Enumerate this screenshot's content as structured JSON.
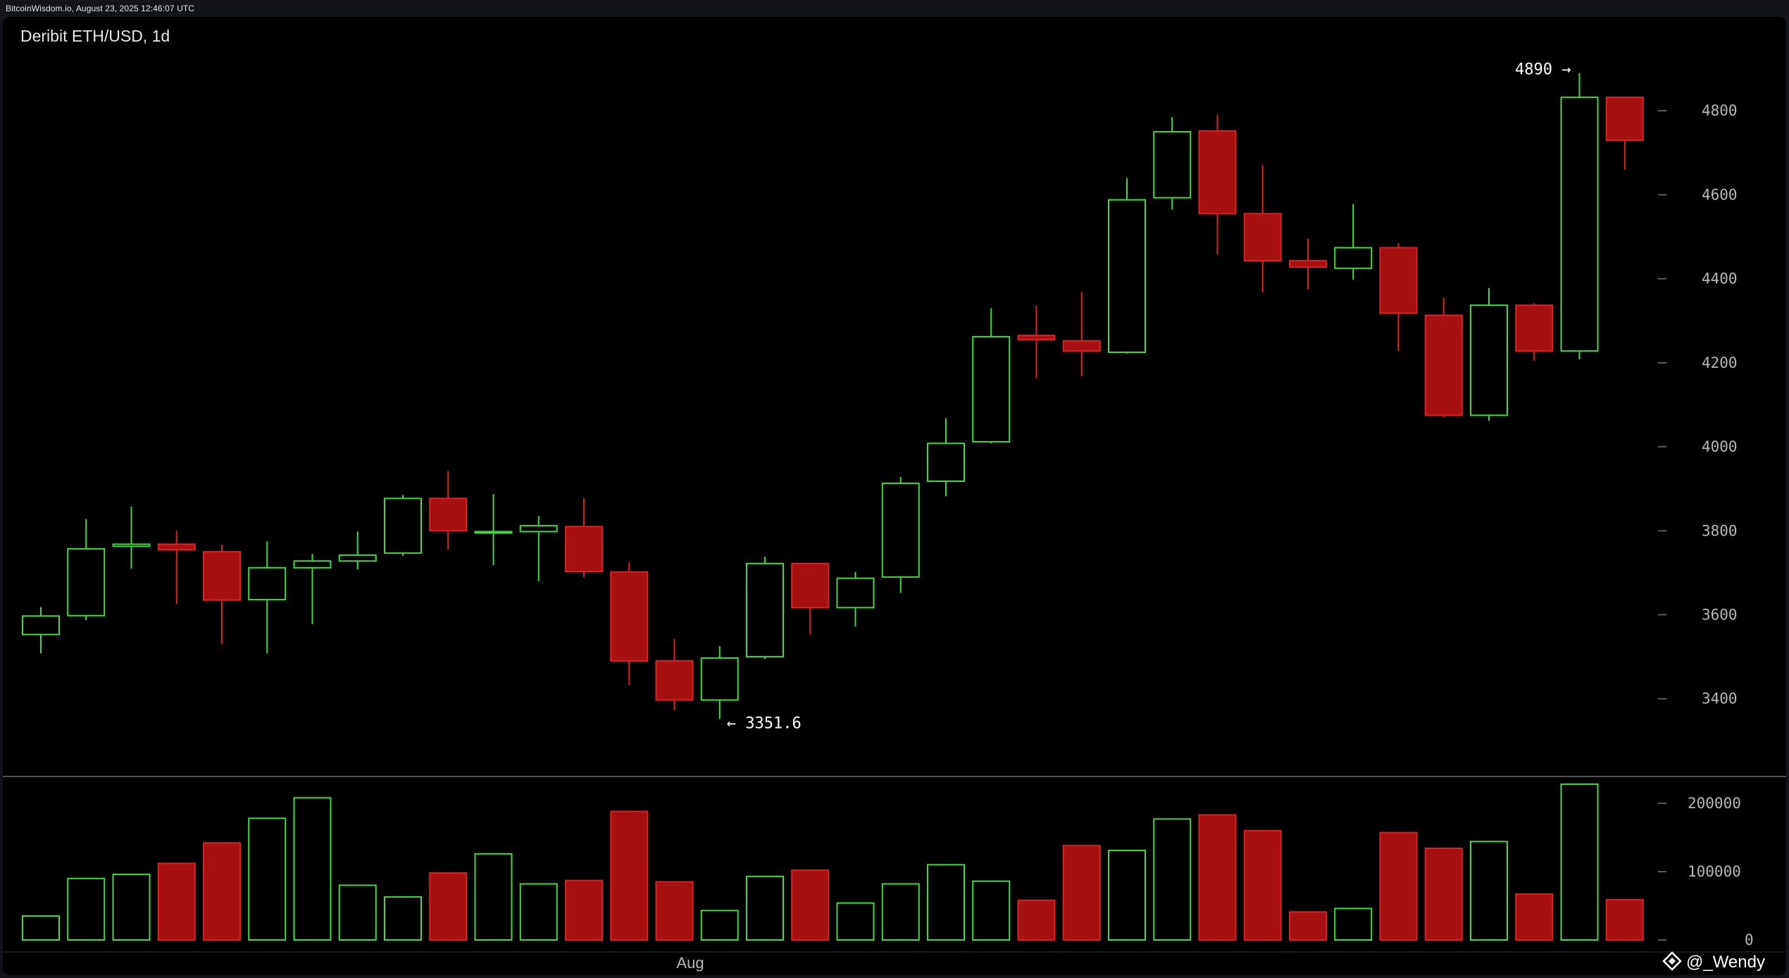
{
  "header": {
    "source_text": "BitcoinWisdom.io, August 23, 2025 12:46:07 UTC"
  },
  "watermark": "@_Wendy",
  "colors": {
    "background": "#000000",
    "up": "#3ddc3d",
    "down": "#a51111",
    "down_stroke": "#e02020",
    "axis_text": "#b8b8b8",
    "separator": "#555555"
  },
  "chart_data": {
    "type": "candlestick",
    "title": "Deribit ETH/USD, 1d",
    "price_axis": {
      "ticks": [
        3400,
        3600,
        3800,
        4000,
        4200,
        4400,
        4600,
        4800
      ],
      "tick_labels": [
        "3400",
        "3600",
        "3800",
        "4000",
        "4200",
        "4400",
        "4600",
        "4800"
      ],
      "range": [
        3220,
        4990
      ]
    },
    "volume_axis": {
      "ticks": [
        0,
        100000,
        200000
      ],
      "tick_labels": [
        "0",
        "100000",
        "200000"
      ],
      "range": [
        0,
        232000
      ]
    },
    "x_labels": [
      {
        "text": "Aug",
        "index": 14.35
      }
    ],
    "annotations": [
      {
        "text": "4890 →",
        "index": 34,
        "value": 4890,
        "side": "left"
      },
      {
        "text": "← 3351.6",
        "index": 15,
        "value": 3351.6,
        "side": "right"
      }
    ],
    "candles": [
      {
        "o": 3553,
        "h": 3618,
        "l": 3508,
        "c": 3597,
        "v": 35000
      },
      {
        "o": 3598,
        "h": 3828,
        "l": 3587,
        "c": 3757,
        "v": 90000
      },
      {
        "o": 3763,
        "h": 3858,
        "l": 3710,
        "c": 3768,
        "v": 96000
      },
      {
        "o": 3768,
        "h": 3800,
        "l": 3625,
        "c": 3755,
        "v": 112000
      },
      {
        "o": 3750,
        "h": 3767,
        "l": 3530,
        "c": 3635,
        "v": 142000
      },
      {
        "o": 3636,
        "h": 3775,
        "l": 3508,
        "c": 3712,
        "v": 178000
      },
      {
        "o": 3712,
        "h": 3745,
        "l": 3578,
        "c": 3728,
        "v": 208000
      },
      {
        "o": 3728,
        "h": 3798,
        "l": 3708,
        "c": 3742,
        "v": 80000
      },
      {
        "o": 3747,
        "h": 3885,
        "l": 3740,
        "c": 3877,
        "v": 63000
      },
      {
        "o": 3877,
        "h": 3942,
        "l": 3755,
        "c": 3800,
        "v": 98000
      },
      {
        "o": 3798,
        "h": 3887,
        "l": 3718,
        "c": 3798,
        "v": 126000
      },
      {
        "o": 3798,
        "h": 3835,
        "l": 3680,
        "c": 3812,
        "v": 82000
      },
      {
        "o": 3810,
        "h": 3878,
        "l": 3690,
        "c": 3703,
        "v": 87000
      },
      {
        "o": 3702,
        "h": 3725,
        "l": 3433,
        "c": 3490,
        "v": 188000
      },
      {
        "o": 3490,
        "h": 3542,
        "l": 3372,
        "c": 3397,
        "v": 85000
      },
      {
        "o": 3397,
        "h": 3525,
        "l": 3351.6,
        "c": 3497,
        "v": 43000
      },
      {
        "o": 3500,
        "h": 3738,
        "l": 3495,
        "c": 3722,
        "v": 93000
      },
      {
        "o": 3722,
        "h": 3722,
        "l": 3552,
        "c": 3617,
        "v": 102000
      },
      {
        "o": 3617,
        "h": 3702,
        "l": 3572,
        "c": 3687,
        "v": 54000
      },
      {
        "o": 3690,
        "h": 3928,
        "l": 3652,
        "c": 3913,
        "v": 82000
      },
      {
        "o": 3918,
        "h": 4068,
        "l": 3882,
        "c": 4008,
        "v": 110000
      },
      {
        "o": 4012,
        "h": 4330,
        "l": 4008,
        "c": 4262,
        "v": 86000
      },
      {
        "o": 4265,
        "h": 4336,
        "l": 4163,
        "c": 4255,
        "v": 58000
      },
      {
        "o": 4252,
        "h": 4368,
        "l": 4168,
        "c": 4228,
        "v": 138000
      },
      {
        "o": 4225,
        "h": 4640,
        "l": 4222,
        "c": 4588,
        "v": 131000
      },
      {
        "o": 4593,
        "h": 4785,
        "l": 4565,
        "c": 4750,
        "v": 177000
      },
      {
        "o": 4752,
        "h": 4790,
        "l": 4458,
        "c": 4555,
        "v": 183000
      },
      {
        "o": 4555,
        "h": 4670,
        "l": 4368,
        "c": 4443,
        "v": 160000
      },
      {
        "o": 4443,
        "h": 4495,
        "l": 4375,
        "c": 4428,
        "v": 41000
      },
      {
        "o": 4425,
        "h": 4578,
        "l": 4398,
        "c": 4474,
        "v": 46000
      },
      {
        "o": 4474,
        "h": 4485,
        "l": 4228,
        "c": 4318,
        "v": 157000
      },
      {
        "o": 4313,
        "h": 4355,
        "l": 4070,
        "c": 4075,
        "v": 134000
      },
      {
        "o": 4075,
        "h": 4378,
        "l": 4062,
        "c": 4337,
        "v": 144000
      },
      {
        "o": 4337,
        "h": 4342,
        "l": 4205,
        "c": 4228,
        "v": 67000
      },
      {
        "o": 4228,
        "h": 4890,
        "l": 4208,
        "c": 4832,
        "v": 228000
      },
      {
        "o": 4832,
        "h": 4832,
        "l": 4660,
        "c": 4730,
        "v": 59000
      }
    ]
  }
}
